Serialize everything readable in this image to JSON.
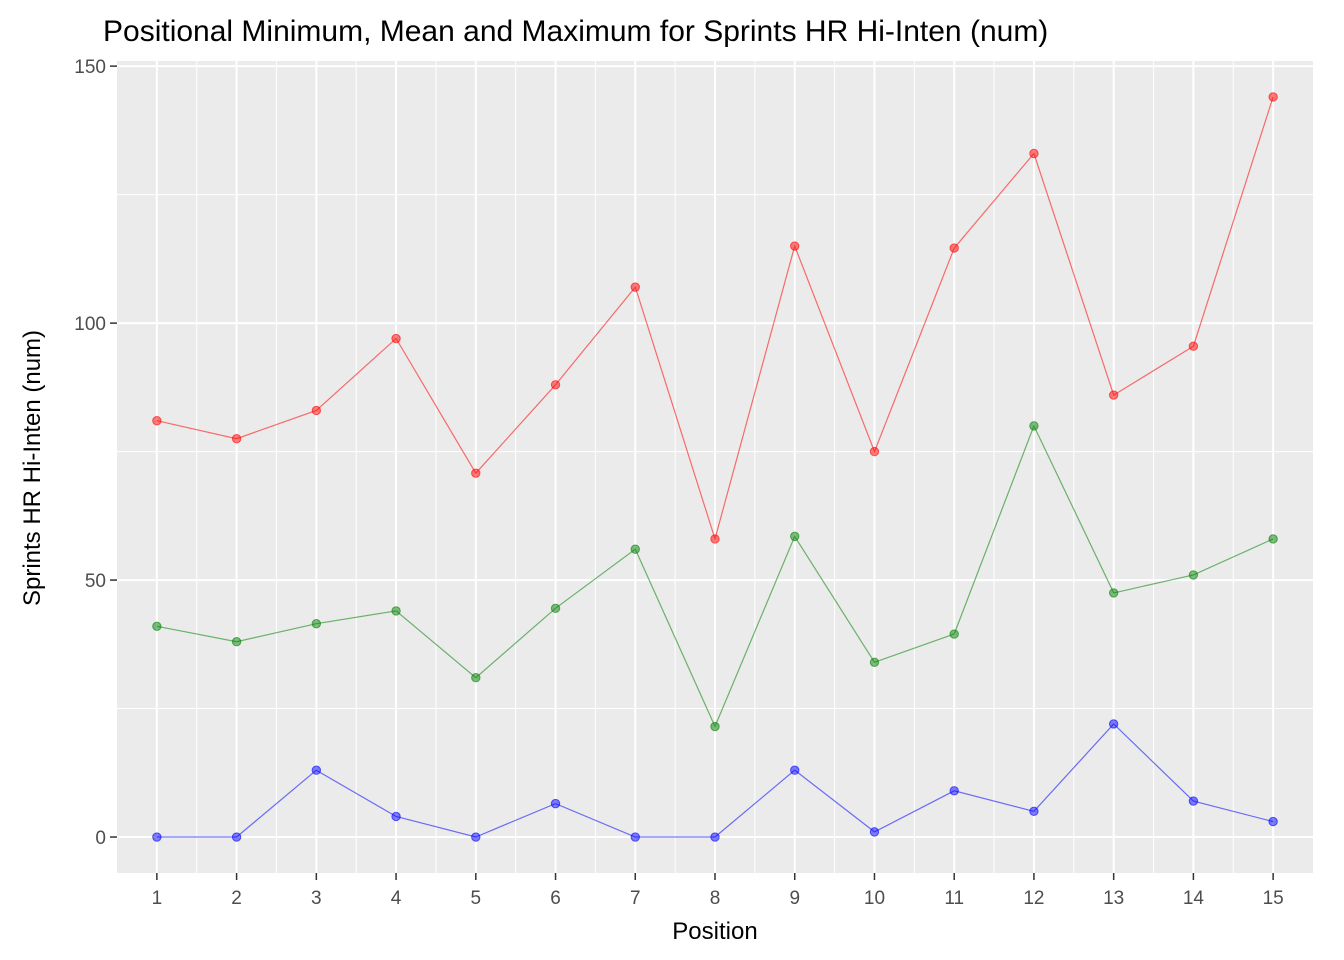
{
  "chart_data": {
    "type": "line",
    "title": "Positional Minimum, Mean and Maximum for Sprints HR Hi-Inten (num)",
    "xlabel": "Position",
    "ylabel": "Sprints HR Hi-Inten (num)",
    "x": [
      1,
      2,
      3,
      4,
      5,
      6,
      7,
      8,
      9,
      10,
      11,
      12,
      13,
      14,
      15
    ],
    "xlim": [
      0.5,
      15.5
    ],
    "ylim": [
      -7,
      151
    ],
    "yticks": [
      0,
      50,
      100,
      150
    ],
    "grid": true,
    "legend": "none",
    "series": [
      {
        "color": "#f8766d",
        "stroke": "#ff0000",
        "values": [
          81,
          77.5,
          83,
          97,
          70.8,
          88,
          107,
          58,
          115,
          75,
          114.6,
          133,
          86,
          95.5,
          144
        ]
      },
      {
        "color": "#00ba38",
        "stroke": "#008000",
        "values": [
          41,
          38,
          41.5,
          44,
          31,
          44.5,
          56,
          21.5,
          58.5,
          34,
          39.5,
          80,
          47.5,
          51,
          58
        ]
      },
      {
        "color": "#619cff",
        "stroke": "#0000ff",
        "values": [
          0,
          0,
          13,
          4,
          0,
          6.5,
          0,
          0,
          13,
          1,
          9,
          5,
          22,
          7,
          3
        ]
      }
    ]
  }
}
